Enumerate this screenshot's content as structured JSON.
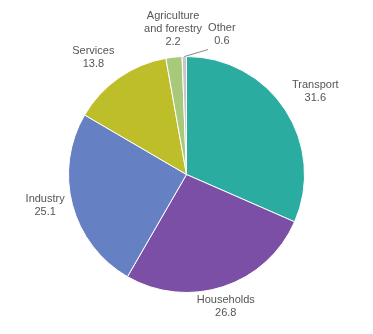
{
  "chart_data": {
    "type": "pie",
    "categories": [
      "Transport",
      "Households",
      "Industry",
      "Services",
      "Agriculture\nand forestry",
      "Other"
    ],
    "values": [
      31.6,
      26.8,
      25.1,
      13.8,
      2.2,
      0.6
    ],
    "colors": [
      "#2aada0",
      "#7b4fa6",
      "#6680c4",
      "#bdbe2a",
      "#a8c87a",
      "#c8c8c8"
    ],
    "data_labels": true
  }
}
